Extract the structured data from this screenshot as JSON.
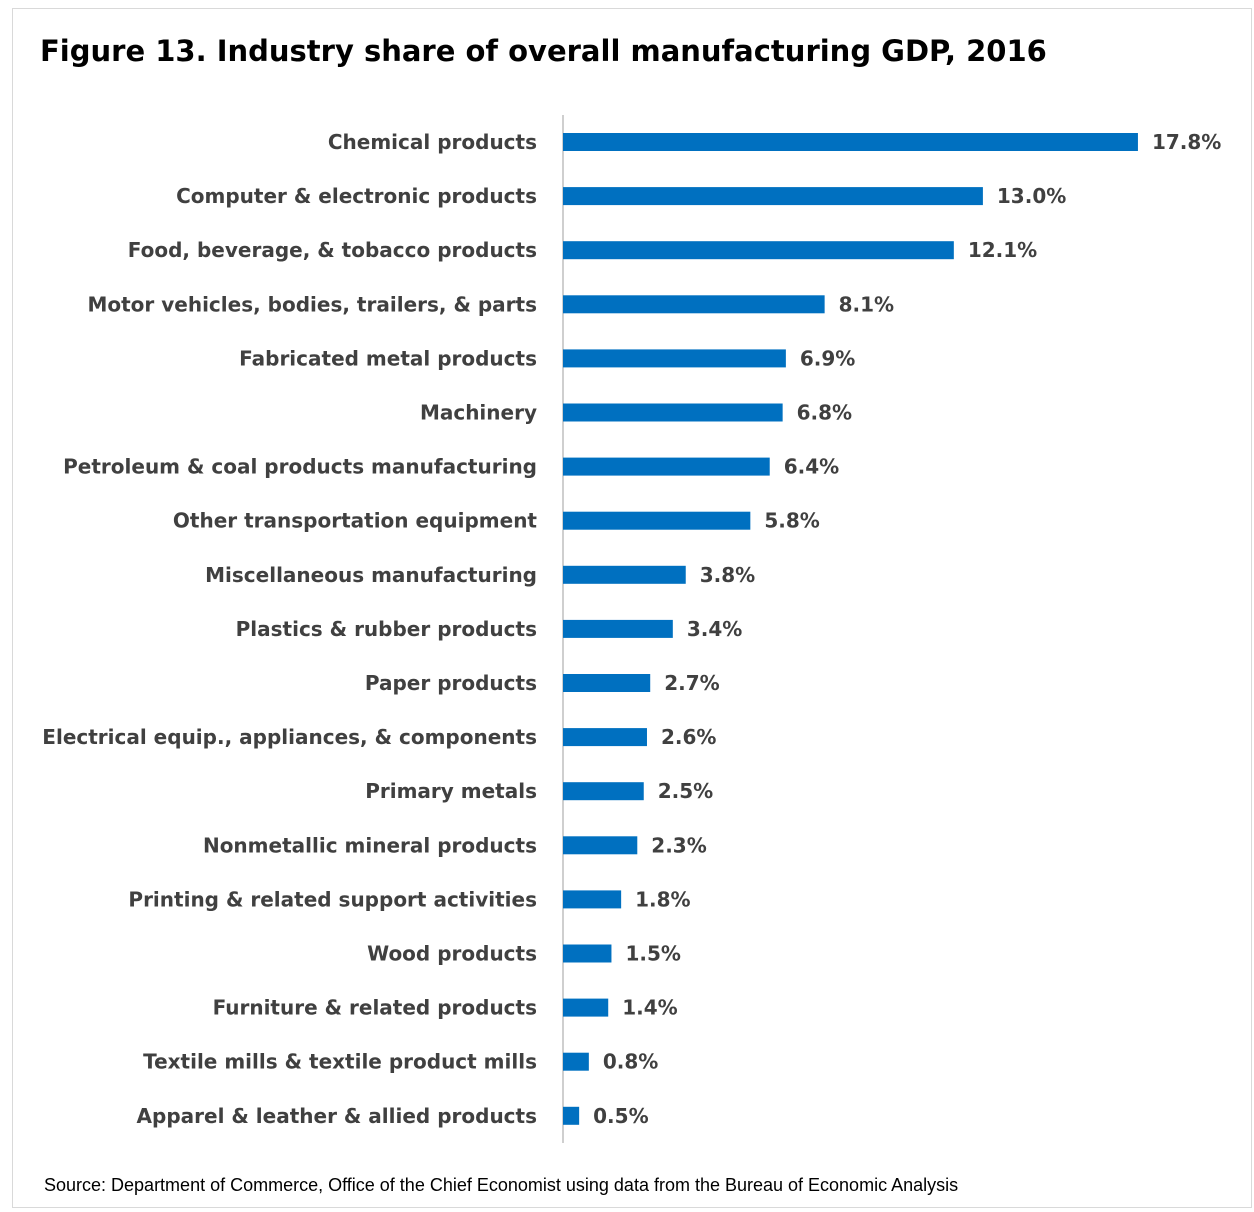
{
  "figure": {
    "title": "Figure 13. Industry share of overall manufacturing GDP, 2016",
    "source": "Source: Department of Commerce, Office of the Chief Economist using data from the Bureau of Economic Analysis"
  },
  "colors": {
    "bar": "#0070C0",
    "axis": "#bfbfbf",
    "text": "#404040"
  },
  "chart_data": {
    "type": "bar",
    "orientation": "horizontal",
    "title": "Figure 13. Industry share of overall manufacturing GDP, 2016",
    "xlabel": "",
    "ylabel": "",
    "grid": false,
    "legend": "none",
    "xlim": [
      0,
      18
    ],
    "categories": [
      "Chemical products",
      "Computer & electronic products",
      "Food, beverage, & tobacco products",
      "Motor vehicles, bodies, trailers, & parts",
      "Fabricated metal products",
      "Machinery",
      "Petroleum & coal products manufacturing",
      "Other transportation equipment",
      "Miscellaneous manufacturing",
      "Plastics & rubber products",
      "Paper products",
      "Electrical equip., appliances, & components",
      "Primary metals",
      "Nonmetallic mineral products",
      "Printing & related support activities",
      "Wood products",
      "Furniture & related products",
      "Textile mills & textile product mills",
      "Apparel & leather & allied products"
    ],
    "values": [
      17.8,
      13.0,
      12.1,
      8.1,
      6.9,
      6.8,
      6.4,
      5.8,
      3.8,
      3.4,
      2.7,
      2.6,
      2.5,
      2.3,
      1.8,
      1.5,
      1.4,
      0.8,
      0.5
    ],
    "value_labels": [
      "17.8%",
      "13.0%",
      "12.1%",
      "8.1%",
      "6.9%",
      "6.8%",
      "6.4%",
      "5.8%",
      "3.8%",
      "3.4%",
      "2.7%",
      "2.6%",
      "2.5%",
      "2.3%",
      "1.8%",
      "1.5%",
      "1.4%",
      "0.8%",
      "0.5%"
    ]
  }
}
